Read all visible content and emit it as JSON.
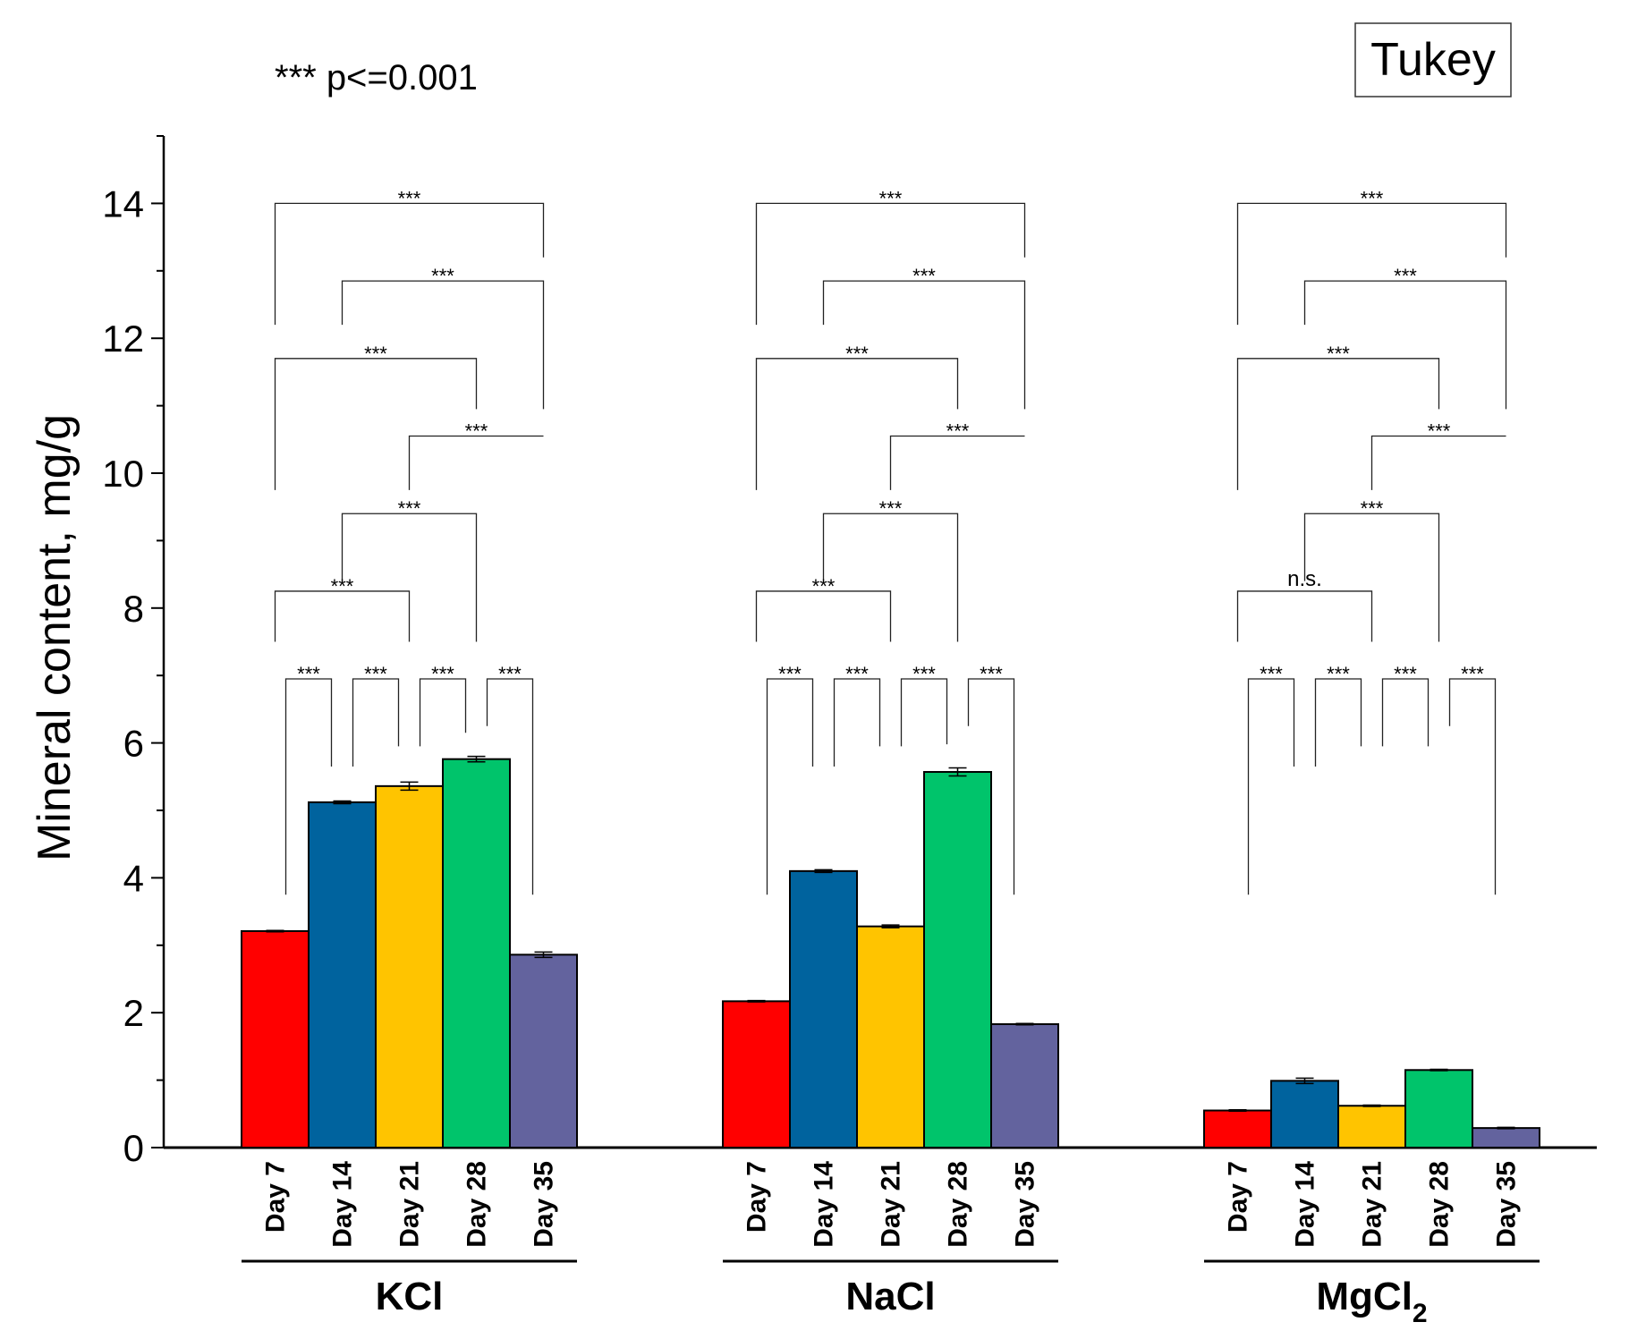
{
  "chart_data": {
    "type": "bar",
    "title": "",
    "ylabel": "Mineral content, mg/g",
    "xlabel": "",
    "ylim": [
      0,
      15
    ],
    "yticks": [
      "0",
      "2",
      "4",
      "6",
      "8",
      "10",
      "12",
      "14"
    ],
    "test_label": "Tukey",
    "significance_note": "*** p<=0.001",
    "categories": [
      "Day 7",
      "Day 14",
      "Day 21",
      "Day 28",
      "Day 35"
    ],
    "colors": [
      "#ff0000",
      "#00639e",
      "#ffc400",
      "#00c46b",
      "#63639e"
    ],
    "groups": [
      {
        "name": "KCl",
        "label_main": "KCl",
        "label_sub": "",
        "values": [
          3.21,
          5.12,
          5.36,
          5.76,
          2.86
        ],
        "errors": [
          0.01,
          0.02,
          0.06,
          0.04,
          0.04
        ],
        "comparisons": [
          {
            "from": 0,
            "to": 4,
            "label": "***"
          },
          {
            "from": 1,
            "to": 4,
            "label": "***"
          },
          {
            "from": 0,
            "to": 3,
            "label": "***"
          },
          {
            "from": 2,
            "to": 4,
            "label": "***"
          },
          {
            "from": 1,
            "to": 3,
            "label": "***"
          },
          {
            "from": 0,
            "to": 2,
            "label": "***"
          },
          {
            "from": 0,
            "to": 1,
            "label": "***"
          },
          {
            "from": 1,
            "to": 2,
            "label": "***"
          },
          {
            "from": 2,
            "to": 3,
            "label": "***"
          },
          {
            "from": 3,
            "to": 4,
            "label": "***"
          }
        ]
      },
      {
        "name": "NaCl",
        "label_main": "NaCl",
        "label_sub": "",
        "values": [
          2.17,
          4.1,
          3.28,
          5.57,
          1.83
        ],
        "errors": [
          0.01,
          0.02,
          0.02,
          0.06,
          0.01
        ],
        "comparisons": [
          {
            "from": 0,
            "to": 4,
            "label": "***"
          },
          {
            "from": 1,
            "to": 4,
            "label": "***"
          },
          {
            "from": 0,
            "to": 3,
            "label": "***"
          },
          {
            "from": 2,
            "to": 4,
            "label": "***"
          },
          {
            "from": 1,
            "to": 3,
            "label": "***"
          },
          {
            "from": 0,
            "to": 2,
            "label": "***"
          },
          {
            "from": 0,
            "to": 1,
            "label": "***"
          },
          {
            "from": 1,
            "to": 2,
            "label": "***"
          },
          {
            "from": 2,
            "to": 3,
            "label": "***"
          },
          {
            "from": 3,
            "to": 4,
            "label": "***"
          }
        ]
      },
      {
        "name": "MgCl2",
        "label_main": "MgCl",
        "label_sub": "2",
        "values": [
          0.55,
          0.99,
          0.62,
          1.15,
          0.29
        ],
        "errors": [
          0.01,
          0.04,
          0.01,
          0.01,
          0.01
        ],
        "comparisons": [
          {
            "from": 0,
            "to": 4,
            "label": "***"
          },
          {
            "from": 1,
            "to": 4,
            "label": "***"
          },
          {
            "from": 0,
            "to": 3,
            "label": "***"
          },
          {
            "from": 2,
            "to": 4,
            "label": "***"
          },
          {
            "from": 1,
            "to": 3,
            "label": "***"
          },
          {
            "from": 0,
            "to": 2,
            "label": "n.s."
          },
          {
            "from": 0,
            "to": 1,
            "label": "***"
          },
          {
            "from": 1,
            "to": 2,
            "label": "***"
          },
          {
            "from": 2,
            "to": 3,
            "label": "***"
          },
          {
            "from": 3,
            "to": 4,
            "label": "***"
          }
        ]
      }
    ]
  }
}
